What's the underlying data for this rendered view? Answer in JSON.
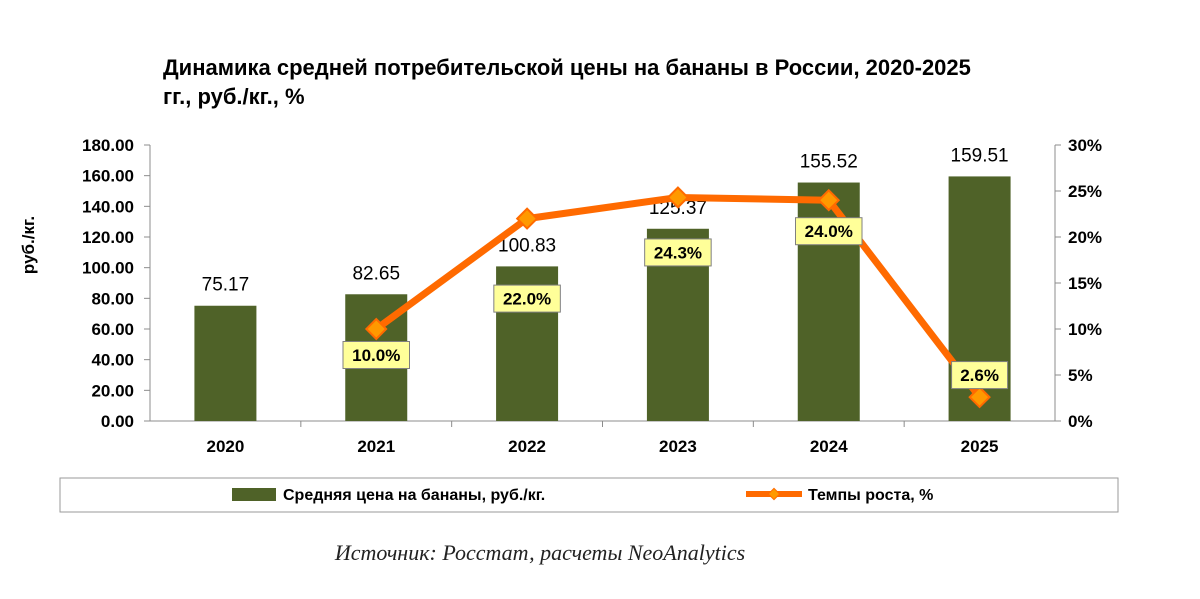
{
  "chart_data": {
    "type": "bar",
    "title_line1": "Динамика средней потребительской цены на бананы в России, 2020-2025",
    "title_line2": "гг., руб./кг., %",
    "ylabel": "руб./кг.",
    "categories": [
      "2020",
      "2021",
      "2022",
      "2023",
      "2024",
      "2025"
    ],
    "ylim": [
      0,
      180
    ],
    "y_ticks": [
      "0.00",
      "20.00",
      "40.00",
      "60.00",
      "80.00",
      "100.00",
      "120.00",
      "140.00",
      "160.00",
      "180.00"
    ],
    "y2lim": [
      0,
      30
    ],
    "y2_ticks": [
      "0%",
      "5%",
      "10%",
      "15%",
      "20%",
      "25%",
      "30%"
    ],
    "series": [
      {
        "name": "Средняя цена на бананы, руб./кг.",
        "type": "bar",
        "values": [
          75.17,
          82.65,
          100.83,
          125.37,
          155.52,
          159.51
        ],
        "labels": [
          "75.17",
          "82.65",
          "100.83",
          "125.37",
          "155.52",
          "159.51"
        ]
      },
      {
        "name": "Темпы роста, %",
        "type": "line",
        "axis": "secondary",
        "values": [
          null,
          10.0,
          22.0,
          24.3,
          24.0,
          2.6
        ],
        "labels": [
          "",
          "10.0%",
          "22.0%",
          "24.3%",
          "24.0%",
          "2.6%"
        ]
      }
    ],
    "colors": {
      "bar": "#4f6228",
      "line": "#ff6a00",
      "marker_fill": "#ff9900",
      "label_bg": "#ffff99"
    },
    "grid": false,
    "legend_position": "bottom"
  },
  "source": "Источник: Росстат, расчеты NeoAnalytics"
}
